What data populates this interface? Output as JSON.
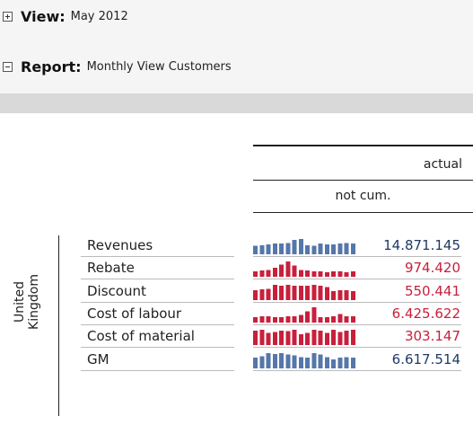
{
  "view": {
    "label": "View:",
    "value": "May 2012",
    "toggle": "plus"
  },
  "report": {
    "label": "Report:",
    "value": "Monthly View Customers",
    "toggle": "minus"
  },
  "table": {
    "column_header": "actual",
    "sub_header": "not cum.",
    "dimension": "United Kingdom",
    "rows": [
      {
        "label": "Revenues",
        "value": "14.871.145",
        "color": "#5577aa",
        "spark": [
          0.55,
          0.6,
          0.65,
          0.7,
          0.7,
          0.75,
          0.95,
          1.0,
          0.6,
          0.55,
          0.7,
          0.65,
          0.65,
          0.7,
          0.75,
          0.7
        ]
      },
      {
        "label": "Rebate",
        "value": "974.420",
        "color": "#c8203c",
        "spark": [
          0.35,
          0.4,
          0.45,
          0.6,
          0.8,
          1.0,
          0.75,
          0.45,
          0.4,
          0.35,
          0.35,
          0.3,
          0.35,
          0.35,
          0.3,
          0.35
        ]
      },
      {
        "label": "Discount",
        "value": "550.441",
        "color": "#c8203c",
        "spark": [
          0.65,
          0.7,
          0.75,
          1.0,
          0.95,
          1.0,
          0.95,
          0.95,
          0.95,
          1.0,
          0.95,
          0.85,
          0.6,
          0.65,
          0.65,
          0.6
        ]
      },
      {
        "label": "Cost of labour",
        "value": "6.425.622",
        "color": "#c8203c",
        "spark": [
          0.35,
          0.4,
          0.4,
          0.35,
          0.35,
          0.4,
          0.4,
          0.5,
          0.75,
          1.0,
          0.35,
          0.35,
          0.4,
          0.55,
          0.4,
          0.4
        ]
      },
      {
        "label": "Cost of material",
        "value": "303.147",
        "color": "#c8203c",
        "spark": [
          0.95,
          1.0,
          0.8,
          0.85,
          0.95,
          0.9,
          1.0,
          0.7,
          0.8,
          1.0,
          0.95,
          0.8,
          1.0,
          0.85,
          0.95,
          1.0
        ]
      },
      {
        "label": "GM",
        "value": "6.617.514",
        "color": "#5577aa",
        "spark": [
          0.7,
          0.8,
          1.0,
          0.95,
          1.0,
          0.9,
          0.85,
          0.75,
          0.7,
          1.0,
          0.9,
          0.75,
          0.6,
          0.7,
          0.75,
          0.7
        ]
      }
    ]
  }
}
